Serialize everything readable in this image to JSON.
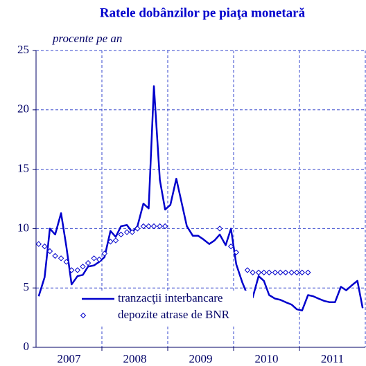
{
  "chart_data": {
    "type": "line",
    "title": "Ratele dobânzilor pe piaţa monetară",
    "subtitle": "procente pe an",
    "xlim": [
      2007,
      2012
    ],
    "xticks": [
      {
        "value": 2007.5,
        "label": "2007"
      },
      {
        "value": 2008.5,
        "label": "2008"
      },
      {
        "value": 2009.5,
        "label": "2009"
      },
      {
        "value": 2010.5,
        "label": "2010"
      },
      {
        "value": 2011.5,
        "label": "2011"
      }
    ],
    "xgrid": [
      2008,
      2009,
      2010,
      2011
    ],
    "ylim": [
      0,
      25
    ],
    "yticks": [
      0,
      5,
      10,
      15,
      20,
      25
    ],
    "grid": true,
    "legend": "lower left",
    "x": [
      2007.04,
      2007.13,
      2007.21,
      2007.29,
      2007.38,
      2007.46,
      2007.54,
      2007.63,
      2007.71,
      2007.79,
      2007.88,
      2007.96,
      2008.04,
      2008.13,
      2008.21,
      2008.29,
      2008.38,
      2008.46,
      2008.54,
      2008.63,
      2008.71,
      2008.79,
      2008.88,
      2008.96,
      2009.04,
      2009.13,
      2009.21,
      2009.29,
      2009.38,
      2009.46,
      2009.54,
      2009.63,
      2009.71,
      2009.79,
      2009.88,
      2009.96,
      2010.04,
      2010.13,
      2010.21,
      2010.29,
      2010.38,
      2010.46,
      2010.54,
      2010.63,
      2010.71,
      2010.79,
      2010.88,
      2010.96,
      2011.04,
      2011.13,
      2011.21,
      2011.29,
      2011.38,
      2011.46,
      2011.54,
      2011.63,
      2011.71,
      2011.79,
      2011.88,
      2011.96
    ],
    "series": [
      {
        "name": "tranzacţii interbancare",
        "type": "line",
        "color": "#0000cc",
        "values": [
          4.3,
          5.9,
          10.0,
          9.5,
          11.3,
          8.5,
          5.3,
          6.0,
          6.1,
          6.8,
          6.9,
          7.2,
          7.6,
          9.8,
          9.3,
          10.2,
          10.3,
          9.7,
          10.2,
          12.1,
          11.7,
          22.0,
          14.1,
          11.6,
          12.0,
          14.2,
          12.2,
          10.2,
          9.4,
          9.4,
          9.1,
          8.7,
          9.0,
          9.5,
          8.6,
          10.0,
          7.0,
          5.5,
          4.4,
          4.2,
          6.0,
          5.6,
          4.4,
          4.1,
          4.0,
          3.8,
          3.6,
          3.2,
          3.1,
          4.4,
          4.3,
          4.1,
          3.9,
          3.8,
          3.8,
          5.1,
          4.8,
          5.2,
          5.6,
          3.3
        ]
      },
      {
        "name": "depozite atrase de BNR",
        "type": "scatter",
        "color": "#0000cc",
        "values": [
          8.7,
          8.5,
          8.1,
          7.7,
          7.5,
          7.2,
          6.5,
          6.5,
          6.8,
          7.1,
          7.5,
          7.4,
          7.9,
          8.9,
          9.0,
          9.5,
          9.7,
          9.7,
          10.0,
          10.2,
          10.2,
          10.2,
          10.2,
          10.2,
          null,
          null,
          null,
          null,
          null,
          null,
          null,
          null,
          null,
          10.0,
          null,
          8.5,
          8.0,
          null,
          6.5,
          6.3,
          6.3,
          6.3,
          6.3,
          6.3,
          6.3,
          6.3,
          6.3,
          6.3,
          6.3,
          6.3,
          null,
          null,
          null,
          null,
          null,
          null,
          null,
          null,
          null,
          null
        ]
      }
    ]
  }
}
